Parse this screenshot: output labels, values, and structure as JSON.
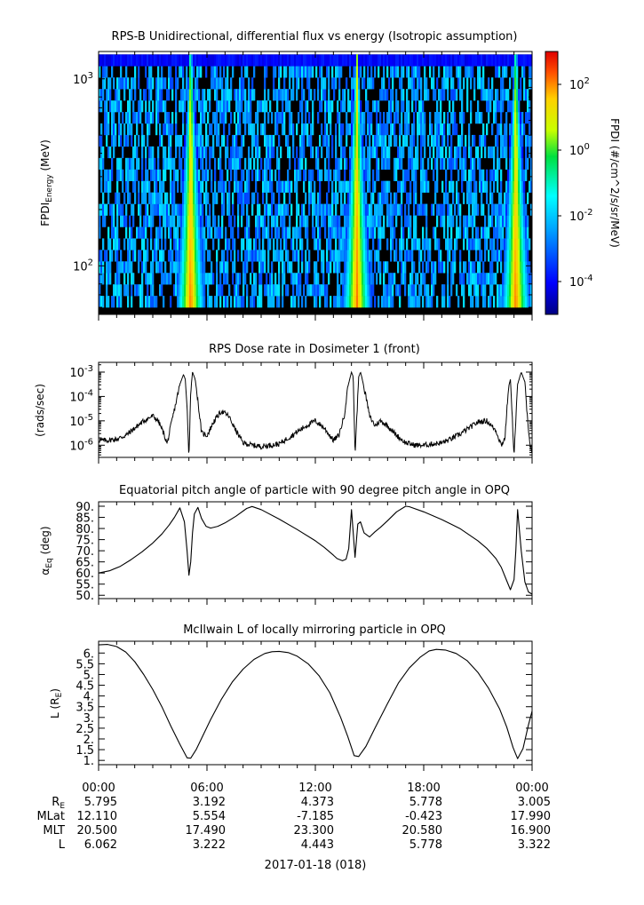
{
  "colors": {
    "axis": "#000000",
    "background": "#ffffff",
    "line": "#000000",
    "spectrogram_void": "#000000"
  },
  "chart_data": [
    {
      "type": "heatmap",
      "title": "RPS-B  Unidirectional, differential flux vs energy (Isotropic assumption)",
      "ylabel_main": "FPDI",
      "ylabel_sub": "Energy",
      "ylabel_unit": " (MeV)",
      "yscale": "log",
      "ylim": [
        55,
        1400
      ],
      "yticks": [
        {
          "value": 100,
          "base": "10",
          "exp": "2"
        },
        {
          "value": 1000,
          "base": "10",
          "exp": "3"
        }
      ],
      "xlim_hours": [
        0,
        24
      ],
      "energy_range_mev": [
        60,
        1350
      ],
      "colorbar": {
        "label": "FPDI (#/cm^2/s/sr/MeV)",
        "scale": "log",
        "range_log10": [
          -5,
          3
        ],
        "ticks": [
          {
            "base": "10",
            "exp": "-4",
            "log": -4
          },
          {
            "base": "10",
            "exp": "-2",
            "log": -2
          },
          {
            "base": "10",
            "exp": "0",
            "log": 0
          },
          {
            "base": "10",
            "exp": "2",
            "log": 2
          }
        ]
      },
      "belt_passes_hours": [
        5.1,
        14.3,
        23.1
      ],
      "background_log10_flux": -2.5
    },
    {
      "type": "line",
      "title": "RPS  Dose rate in Dosimeter 1 (front)",
      "ylabel": "(rads/sec)",
      "yscale": "log",
      "ylim_log10": [
        -6.5,
        -2.6
      ],
      "yticks": [
        {
          "base": "10",
          "exp": "-3",
          "log": -3
        },
        {
          "base": "10",
          "exp": "-4",
          "log": -4
        },
        {
          "base": "10",
          "exp": "-5",
          "log": -5
        },
        {
          "base": "10",
          "exp": "-6",
          "log": -6
        }
      ],
      "x_hours": [
        0,
        0.5,
        1,
        1.5,
        2,
        2.5,
        3,
        3.3,
        3.6,
        3.8,
        4.0,
        4.3,
        4.5,
        4.7,
        4.8,
        4.9,
        5.0,
        5.1,
        5.2,
        5.35,
        5.5,
        5.7,
        6.0,
        6.4,
        6.8,
        7.2,
        7.6,
        8.0,
        8.5,
        9,
        9.5,
        10,
        10.5,
        11,
        11.5,
        12,
        12.5,
        13,
        13.3,
        13.6,
        13.8,
        14.0,
        14.1,
        14.2,
        14.4,
        14.5,
        14.6,
        14.8,
        15.0,
        15.3,
        15.6,
        16.0,
        16.5,
        17,
        17.5,
        18,
        18.5,
        19,
        19.5,
        20,
        20.5,
        21,
        21.5,
        22.0,
        22.3,
        22.5,
        22.6,
        22.7,
        22.8,
        23.0,
        23.2,
        23.4,
        23.6,
        23.8,
        24.0
      ],
      "y_log10": [
        -5.8,
        -5.8,
        -5.75,
        -5.6,
        -5.3,
        -5.0,
        -4.8,
        -5.0,
        -5.5,
        -5.95,
        -5.2,
        -4.2,
        -3.5,
        -3.1,
        -3.3,
        -4.5,
        -6.5,
        -3.8,
        -3.0,
        -3.3,
        -4.2,
        -5.5,
        -5.6,
        -5.0,
        -4.6,
        -4.8,
        -5.4,
        -5.9,
        -6.0,
        -6.05,
        -6.0,
        -5.95,
        -5.7,
        -5.45,
        -5.2,
        -5.0,
        -5.3,
        -5.8,
        -5.6,
        -4.8,
        -3.6,
        -3.0,
        -3.2,
        -6.4,
        -3.2,
        -3.0,
        -3.3,
        -4.0,
        -4.8,
        -5.2,
        -5.0,
        -5.2,
        -5.6,
        -5.9,
        -6.0,
        -6.0,
        -5.95,
        -5.9,
        -5.75,
        -5.55,
        -5.3,
        -5.05,
        -5.0,
        -5.4,
        -6.0,
        -5.7,
        -4.6,
        -3.6,
        -3.3,
        -6.4,
        -3.5,
        -3.0,
        -3.4,
        -5.5,
        -6.3
      ]
    },
    {
      "type": "line",
      "title": "Equatorial pitch angle of particle with 90 degree pitch angle in OPQ",
      "ylabel_main": "α",
      "ylabel_sub": "Eq",
      "ylabel_unit": " (deg)",
      "ylim": [
        48.5,
        92
      ],
      "yticks": [
        50,
        55,
        60,
        65,
        70,
        75,
        80,
        85,
        90
      ],
      "ytick_labels": [
        "50.",
        "55.",
        "60.",
        "65.",
        "70.",
        "75.",
        "80.",
        "85.",
        "90."
      ],
      "x_hours": [
        0,
        0.6,
        1.2,
        1.8,
        2.4,
        3.0,
        3.5,
        3.9,
        4.2,
        4.5,
        4.75,
        4.9,
        5.0,
        5.1,
        5.2,
        5.3,
        5.5,
        5.7,
        5.95,
        6.2,
        6.6,
        7.0,
        7.6,
        8.2,
        8.5,
        9.0,
        10.0,
        11.0,
        12.0,
        12.5,
        13.0,
        13.2,
        13.5,
        13.7,
        13.85,
        14.0,
        14.2,
        14.35,
        14.5,
        14.7,
        15.0,
        15.3,
        15.6,
        16.0,
        16.5,
        17.0,
        17.2,
        18.0,
        19.0,
        20.0,
        21.0,
        21.5,
        22.0,
        22.3,
        22.6,
        22.8,
        23.0,
        23.1,
        23.2,
        23.4,
        23.6,
        23.8,
        24.0
      ],
      "y": [
        60,
        61,
        63,
        66,
        69.5,
        73.5,
        77.5,
        81.5,
        85,
        89.3,
        83,
        70,
        59,
        65,
        78,
        86.5,
        89.5,
        84.5,
        81,
        80.2,
        81,
        82.5,
        85.5,
        89,
        89.9,
        88.5,
        84.2,
        79.5,
        74.5,
        71.5,
        68,
        66.5,
        65.5,
        66.2,
        71,
        88.5,
        67,
        82,
        83,
        78,
        76.2,
        78.5,
        80.5,
        83.5,
        87.5,
        90,
        89.8,
        87.5,
        84,
        80,
        74.5,
        71,
        66.5,
        62.5,
        56.5,
        52.5,
        57,
        70,
        88.5,
        70,
        56,
        51.5,
        50.5
      ]
    },
    {
      "type": "line",
      "title": "McIlwain L of locally mirroring particle in OPQ",
      "ylabel_main": "L (R",
      "ylabel_sub": "E",
      "ylabel_unit": ")",
      "ylim": [
        0.8,
        6.55
      ],
      "yticks": [
        1,
        1.5,
        2,
        2.5,
        3,
        3.5,
        4,
        4.5,
        5,
        5.5,
        6
      ],
      "ytick_labels": [
        "1.",
        "1.5",
        "2.",
        "2.5",
        "3.",
        "3.5",
        "4.",
        "4.5",
        "5.",
        "5.5",
        "6."
      ],
      "x_hours": [
        0,
        0.5,
        1,
        1.5,
        2,
        2.5,
        3,
        3.5,
        4,
        4.5,
        4.9,
        5.1,
        5.4,
        5.8,
        6.2,
        6.8,
        7.4,
        8.0,
        8.6,
        9.2,
        9.6,
        10.0,
        10.5,
        11.0,
        11.6,
        12.2,
        12.8,
        13.4,
        13.8,
        14.15,
        14.4,
        14.8,
        15.3,
        16.0,
        16.6,
        17.2,
        17.8,
        18.3,
        18.7,
        19.2,
        19.8,
        20.4,
        21.0,
        21.6,
        22.2,
        22.6,
        22.95,
        23.2,
        23.5,
        23.8,
        24.0
      ],
      "y": [
        6.38,
        6.4,
        6.3,
        6.05,
        5.6,
        5.0,
        4.3,
        3.5,
        2.6,
        1.75,
        1.12,
        1.1,
        1.5,
        2.2,
        2.9,
        3.85,
        4.65,
        5.25,
        5.7,
        5.98,
        6.06,
        6.08,
        6.02,
        5.85,
        5.5,
        4.95,
        4.15,
        3.0,
        2.1,
        1.22,
        1.18,
        1.65,
        2.5,
        3.65,
        4.6,
        5.3,
        5.8,
        6.1,
        6.17,
        6.14,
        5.98,
        5.65,
        5.1,
        4.35,
        3.4,
        2.55,
        1.6,
        1.08,
        1.55,
        2.65,
        3.3
      ]
    }
  ],
  "xaxis": {
    "tick_labels": [
      "00:00",
      "06:00",
      "12:00",
      "18:00",
      "00:00"
    ],
    "row_labels": [
      {
        "main": "R",
        "sub": "E"
      },
      {
        "main": "MLat",
        "sub": ""
      },
      {
        "main": "MLT",
        "sub": ""
      },
      {
        "main": "L",
        "sub": ""
      }
    ],
    "rows": [
      [
        "5.795",
        "3.192",
        "4.373",
        "5.778",
        "3.005"
      ],
      [
        "12.110",
        "5.554",
        "-7.185",
        "-0.423",
        "17.990"
      ],
      [
        "20.500",
        "17.490",
        "23.300",
        "20.580",
        "16.900"
      ],
      [
        "6.062",
        "3.222",
        "4.443",
        "5.778",
        "3.322"
      ]
    ],
    "date_label": "2017-01-18 (018)"
  }
}
